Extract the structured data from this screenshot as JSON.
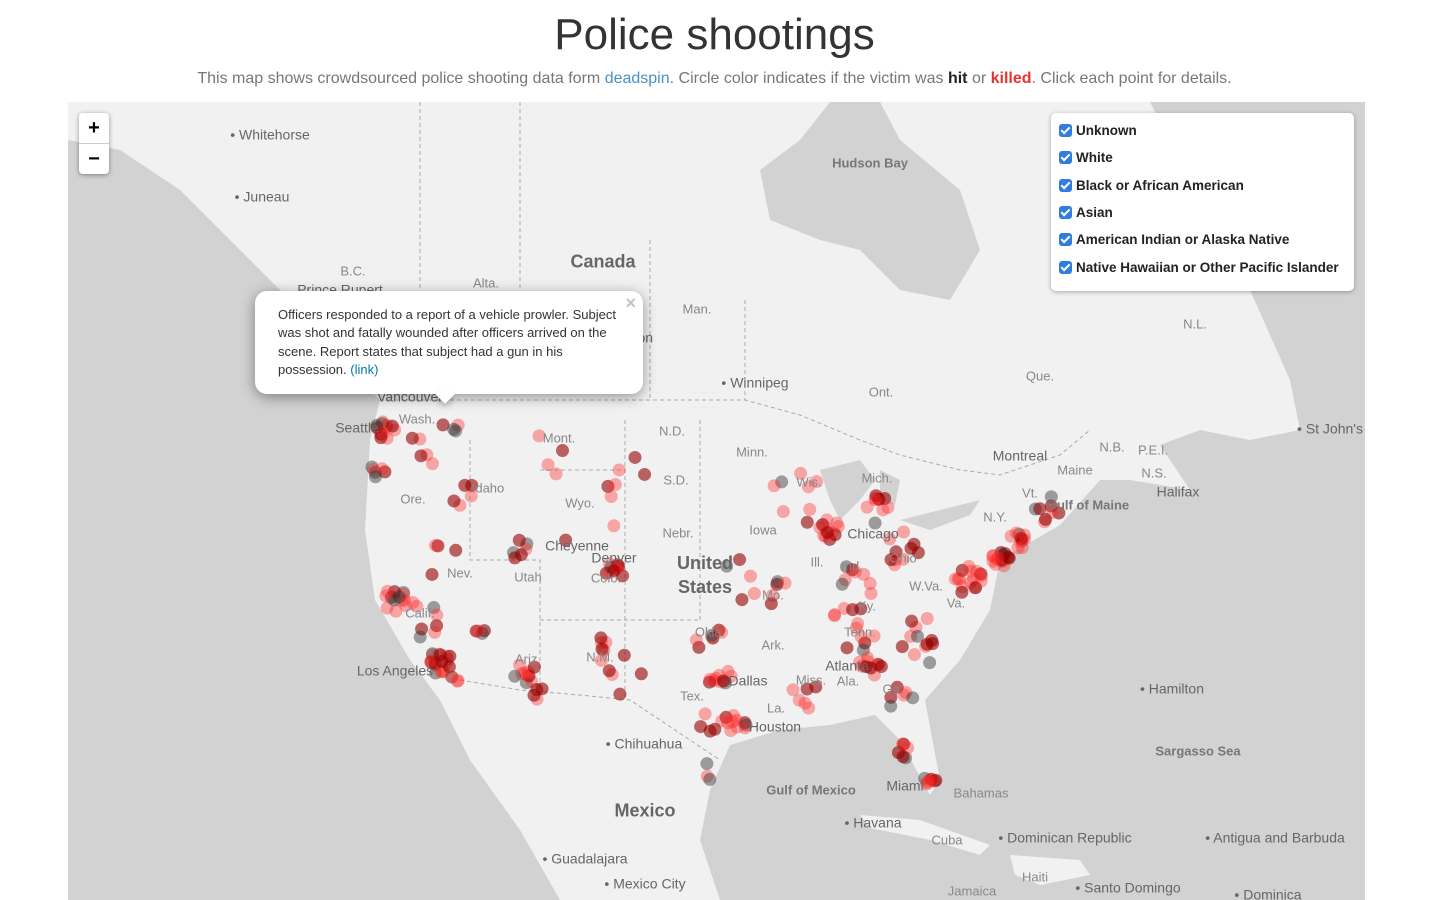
{
  "header": {
    "title": "Police shootings",
    "subtitle": {
      "before": "This map shows crowdsourced police shooting data form ",
      "link": "deadspin",
      "middle": ". Circle color indicates if the victim was ",
      "hit": "hit",
      "or": " or ",
      "killed": "killed",
      "after": ". Click each point for details."
    }
  },
  "zoom": {
    "in": "+",
    "out": "−"
  },
  "legend": {
    "items": [
      "Unknown",
      "White",
      "Black or African American",
      "Asian",
      "American Indian or Alaska Native",
      "Native Hawaiian or Other Pacific Islander"
    ]
  },
  "popup": {
    "text": "Officers responded to a report of a vehicle prowler. Subject was shot and fatally wounded after officers arrived on the scene. Report states that subject had a gun in his possession.",
    "link": "(link)",
    "close": "×"
  },
  "map": {
    "labels": [
      "Whitehorse",
      "Juneau",
      "B.C.",
      "Alta.",
      "Canada",
      "Hudson Bay",
      "Man.",
      "Winnipeg",
      "Ont.",
      "Que.",
      "N.L.",
      "St John's",
      "Montreal",
      "N.B.",
      "P.E.I.",
      "N.S.",
      "Halifax",
      "Gulf of Maine",
      "Seattle",
      "Wash.",
      "Ore.",
      "Idaho",
      "Mont.",
      "N.D.",
      "S.D.",
      "Minn.",
      "Wyo.",
      "Nebr.",
      "Cheyenne",
      "Denver",
      "Colo.",
      "Nev.",
      "Utah",
      "Calif.",
      "Ariz.",
      "N.M.",
      "Okla.",
      "Tex.",
      "Dallas",
      "Houston",
      "La.",
      "Iowa",
      "Ill.",
      "Mo.",
      "Wis.",
      "Mich.",
      "Chicago",
      "Ind.",
      "Ohio",
      "Ky.",
      "W.Va.",
      "Va.",
      "N.Y.",
      "Vt.",
      "Maine",
      "Tenn.",
      "Ark.",
      "Miss.",
      "Ala.",
      "Atlanta",
      "Ga.",
      "Miami",
      "Bahamas",
      "Los Angeles",
      "United States",
      "Mexico",
      "Chihuahua",
      "Gulf of Mexico",
      "Havana",
      "Cuba",
      "Guadalajara",
      "Mexico City",
      "Jamaica",
      "Haiti",
      "Santo Domingo",
      "Dominican Republic",
      "Sargasso Sea",
      "Hamilton",
      "Antigua and Barbuda",
      "Dominica",
      "Vancouver",
      "Prince Rupert",
      "Saskatoon"
    ]
  }
}
